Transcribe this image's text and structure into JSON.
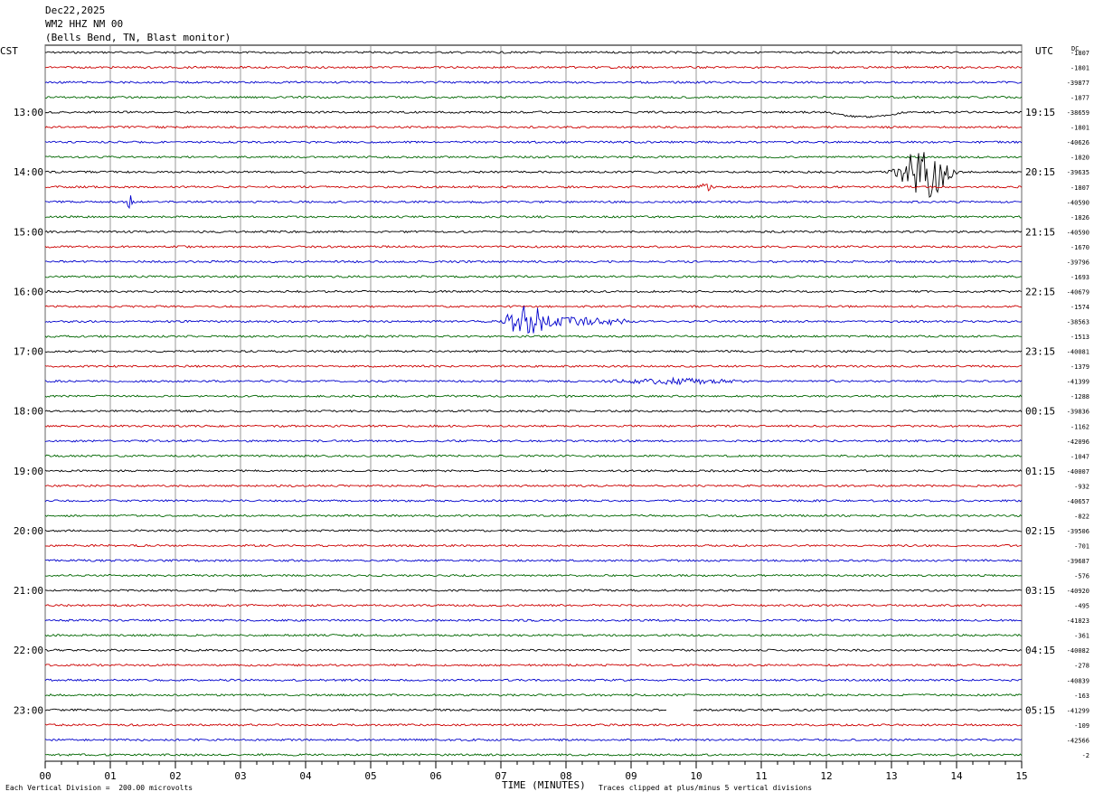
{
  "header": {
    "date": "Dec22,2025",
    "station": "WM2 HHZ NM 00",
    "location": "(Bells Bend, TN, Blast monitor)"
  },
  "left_axis_label": "CST",
  "right_axis_label": "UTC",
  "dc_label": "DC",
  "footer": {
    "scale_note": "Each Vertical Division =  200.00 microvolts",
    "xaxis_title": "TIME (MINUTES)",
    "clip_note": "Traces clipped at plus/minus 5 vertical divisions"
  },
  "colors": {
    "trace_cycle": [
      "#000000",
      "#cc0000",
      "#0000cc",
      "#006600"
    ],
    "grid": "#808080"
  },
  "chart_data": {
    "type": "line",
    "description_kind": "helicorder",
    "xlabel": "TIME (MINUTES)",
    "xlim": [
      0,
      15
    ],
    "x_ticks": [
      "00",
      "01",
      "02",
      "03",
      "04",
      "05",
      "06",
      "07",
      "08",
      "09",
      "10",
      "11",
      "12",
      "13",
      "14",
      "15"
    ],
    "minutes_per_trace": 15,
    "trace_count": 48,
    "cst_hour_labels": [
      "13:00",
      "14:00",
      "15:00",
      "16:00",
      "17:00",
      "18:00",
      "19:00",
      "20:00",
      "21:00",
      "22:00",
      "23:00"
    ],
    "utc_labels": [
      "19:15",
      "20:15",
      "21:15",
      "22:15",
      "23:15",
      "00:15",
      "01:15",
      "02:15",
      "03:15",
      "04:15",
      "05:15"
    ],
    "dc_offsets": [
      "-1807",
      "-1801",
      "-39877",
      "-1877",
      "-38659",
      "-1801",
      "-40626",
      "-1820",
      "-39635",
      "-1807",
      "-40590",
      "-1826",
      "-40590",
      "-1670",
      "-39796",
      "-1693",
      "-40679",
      "-1574",
      "-38563",
      "-1513",
      "-40081",
      "-1379",
      "-41399",
      "-1288",
      "-39836",
      "-1162",
      "-42096",
      "-1047",
      "-40007",
      "-932",
      "-40657",
      "-822",
      "-39506",
      "-701",
      "-39687",
      "-576",
      "-40920",
      "-495",
      "-41823",
      "-361",
      "-40082",
      "-278",
      "-40839",
      "-163",
      "-41299",
      "-109",
      "-42566",
      "-2"
    ],
    "events": [
      {
        "trace": 4,
        "start_min": 12.0,
        "end_min": 13.2,
        "kind": "slow dip"
      },
      {
        "trace": 8,
        "start_min": 12.9,
        "end_min": 14.1,
        "kind": "large burst"
      },
      {
        "trace": 9,
        "start_min": 10.0,
        "end_min": 10.3,
        "kind": "small burst"
      },
      {
        "trace": 10,
        "start_min": 1.25,
        "end_min": 1.35,
        "kind": "spike"
      },
      {
        "trace": 18,
        "start_min": 7.0,
        "end_min": 9.1,
        "kind": "burst"
      },
      {
        "trace": 22,
        "start_min": 8.6,
        "end_min": 10.8,
        "kind": "moderate"
      },
      {
        "trace": 40,
        "start_min": 9.0,
        "end_min": 9.1,
        "kind": "gap"
      },
      {
        "trace": 44,
        "start_min": 9.55,
        "end_min": 9.95,
        "kind": "gap"
      }
    ]
  }
}
